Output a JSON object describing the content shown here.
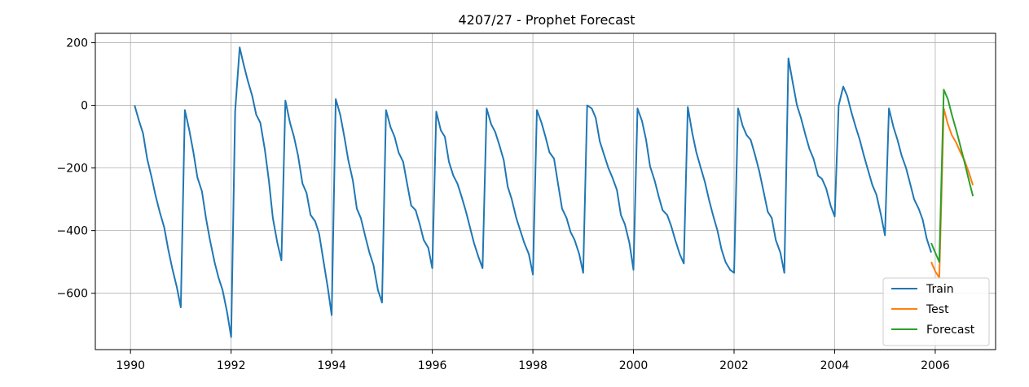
{
  "chart_data": {
    "type": "line",
    "title": "4207/27 - Prophet Forecast",
    "xlabel": "",
    "ylabel": "",
    "xlim": [
      1989.3,
      2007.2
    ],
    "ylim": [
      -780,
      230
    ],
    "x_ticks": [
      1990,
      1992,
      1994,
      1996,
      1998,
      2000,
      2002,
      2004,
      2006
    ],
    "x_tick_labels": [
      "1990",
      "1992",
      "1994",
      "1996",
      "1998",
      "2000",
      "2002",
      "2004",
      "2006"
    ],
    "y_ticks": [
      200,
      0,
      -200,
      -400,
      -600
    ],
    "y_tick_labels": [
      "200",
      "0",
      "−200",
      "−400",
      "−600"
    ],
    "grid": true,
    "legend_position": "bottom-right",
    "series": [
      {
        "name": "Train",
        "color": "#1f77b4",
        "points": [
          [
            1990.08,
            0
          ],
          [
            1990.17,
            -50
          ],
          [
            1990.25,
            -90
          ],
          [
            1990.33,
            -170
          ],
          [
            1990.42,
            -230
          ],
          [
            1990.5,
            -290
          ],
          [
            1990.58,
            -340
          ],
          [
            1990.67,
            -390
          ],
          [
            1990.75,
            -460
          ],
          [
            1990.83,
            -520
          ],
          [
            1990.92,
            -580
          ],
          [
            1991.0,
            -645
          ],
          [
            1991.08,
            -15
          ],
          [
            1991.17,
            -80
          ],
          [
            1991.25,
            -150
          ],
          [
            1991.33,
            -230
          ],
          [
            1991.42,
            -275
          ],
          [
            1991.5,
            -360
          ],
          [
            1991.58,
            -430
          ],
          [
            1991.67,
            -500
          ],
          [
            1991.75,
            -550
          ],
          [
            1991.83,
            -590
          ],
          [
            1991.92,
            -660
          ],
          [
            1992.0,
            -740
          ],
          [
            1992.08,
            -20
          ],
          [
            1992.17,
            185
          ],
          [
            1992.25,
            130
          ],
          [
            1992.33,
            80
          ],
          [
            1992.42,
            30
          ],
          [
            1992.5,
            -30
          ],
          [
            1992.58,
            -55
          ],
          [
            1992.67,
            -140
          ],
          [
            1992.75,
            -240
          ],
          [
            1992.83,
            -360
          ],
          [
            1992.92,
            -440
          ],
          [
            1993.0,
            -495
          ],
          [
            1993.08,
            15
          ],
          [
            1993.17,
            -55
          ],
          [
            1993.25,
            -100
          ],
          [
            1993.33,
            -160
          ],
          [
            1993.42,
            -250
          ],
          [
            1993.5,
            -280
          ],
          [
            1993.58,
            -350
          ],
          [
            1993.67,
            -370
          ],
          [
            1993.75,
            -410
          ],
          [
            1993.83,
            -490
          ],
          [
            1993.92,
            -580
          ],
          [
            1994.0,
            -670
          ],
          [
            1994.08,
            20
          ],
          [
            1994.17,
            -30
          ],
          [
            1994.25,
            -100
          ],
          [
            1994.33,
            -175
          ],
          [
            1994.42,
            -240
          ],
          [
            1994.5,
            -330
          ],
          [
            1994.58,
            -360
          ],
          [
            1994.67,
            -420
          ],
          [
            1994.75,
            -470
          ],
          [
            1994.83,
            -510
          ],
          [
            1994.92,
            -590
          ],
          [
            1995.0,
            -630
          ],
          [
            1995.08,
            -15
          ],
          [
            1995.17,
            -70
          ],
          [
            1995.25,
            -100
          ],
          [
            1995.33,
            -150
          ],
          [
            1995.42,
            -180
          ],
          [
            1995.5,
            -250
          ],
          [
            1995.58,
            -320
          ],
          [
            1995.67,
            -335
          ],
          [
            1995.75,
            -380
          ],
          [
            1995.83,
            -430
          ],
          [
            1995.92,
            -455
          ],
          [
            1996.0,
            -520
          ],
          [
            1996.08,
            -20
          ],
          [
            1996.17,
            -80
          ],
          [
            1996.25,
            -100
          ],
          [
            1996.33,
            -180
          ],
          [
            1996.42,
            -225
          ],
          [
            1996.5,
            -250
          ],
          [
            1996.58,
            -290
          ],
          [
            1996.67,
            -340
          ],
          [
            1996.75,
            -390
          ],
          [
            1996.83,
            -440
          ],
          [
            1996.92,
            -485
          ],
          [
            1997.0,
            -520
          ],
          [
            1997.08,
            -10
          ],
          [
            1997.17,
            -60
          ],
          [
            1997.25,
            -85
          ],
          [
            1997.33,
            -125
          ],
          [
            1997.42,
            -175
          ],
          [
            1997.5,
            -260
          ],
          [
            1997.58,
            -300
          ],
          [
            1997.67,
            -360
          ],
          [
            1997.75,
            -400
          ],
          [
            1997.83,
            -440
          ],
          [
            1997.92,
            -475
          ],
          [
            1998.0,
            -540
          ],
          [
            1998.08,
            -15
          ],
          [
            1998.17,
            -55
          ],
          [
            1998.25,
            -100
          ],
          [
            1998.33,
            -150
          ],
          [
            1998.42,
            -170
          ],
          [
            1998.5,
            -250
          ],
          [
            1998.58,
            -330
          ],
          [
            1998.67,
            -360
          ],
          [
            1998.75,
            -405
          ],
          [
            1998.83,
            -430
          ],
          [
            1998.92,
            -475
          ],
          [
            1999.0,
            -535
          ],
          [
            1999.08,
            0
          ],
          [
            1999.17,
            -10
          ],
          [
            1999.25,
            -40
          ],
          [
            1999.33,
            -115
          ],
          [
            1999.42,
            -160
          ],
          [
            1999.5,
            -200
          ],
          [
            1999.58,
            -230
          ],
          [
            1999.67,
            -270
          ],
          [
            1999.75,
            -350
          ],
          [
            1999.83,
            -380
          ],
          [
            1999.92,
            -440
          ],
          [
            2000.0,
            -525
          ],
          [
            2000.08,
            -10
          ],
          [
            2000.17,
            -50
          ],
          [
            2000.25,
            -110
          ],
          [
            2000.33,
            -195
          ],
          [
            2000.42,
            -240
          ],
          [
            2000.5,
            -290
          ],
          [
            2000.58,
            -335
          ],
          [
            2000.67,
            -350
          ],
          [
            2000.75,
            -385
          ],
          [
            2000.83,
            -430
          ],
          [
            2000.92,
            -475
          ],
          [
            2001.0,
            -505
          ],
          [
            2001.08,
            -5
          ],
          [
            2001.17,
            -90
          ],
          [
            2001.25,
            -150
          ],
          [
            2001.33,
            -195
          ],
          [
            2001.42,
            -245
          ],
          [
            2001.5,
            -300
          ],
          [
            2001.58,
            -350
          ],
          [
            2001.67,
            -400
          ],
          [
            2001.75,
            -460
          ],
          [
            2001.83,
            -500
          ],
          [
            2001.92,
            -525
          ],
          [
            2002.0,
            -535
          ],
          [
            2002.08,
            -10
          ],
          [
            2002.17,
            -65
          ],
          [
            2002.25,
            -95
          ],
          [
            2002.33,
            -110
          ],
          [
            2002.42,
            -160
          ],
          [
            2002.5,
            -210
          ],
          [
            2002.58,
            -270
          ],
          [
            2002.67,
            -340
          ],
          [
            2002.75,
            -360
          ],
          [
            2002.83,
            -430
          ],
          [
            2002.92,
            -470
          ],
          [
            2003.0,
            -535
          ],
          [
            2003.08,
            150
          ],
          [
            2003.17,
            70
          ],
          [
            2003.25,
            0
          ],
          [
            2003.33,
            -40
          ],
          [
            2003.42,
            -95
          ],
          [
            2003.5,
            -140
          ],
          [
            2003.58,
            -170
          ],
          [
            2003.67,
            -225
          ],
          [
            2003.75,
            -235
          ],
          [
            2003.83,
            -265
          ],
          [
            2003.92,
            -320
          ],
          [
            2004.0,
            -355
          ],
          [
            2004.08,
            0
          ],
          [
            2004.17,
            60
          ],
          [
            2004.25,
            30
          ],
          [
            2004.33,
            -20
          ],
          [
            2004.42,
            -70
          ],
          [
            2004.5,
            -110
          ],
          [
            2004.58,
            -160
          ],
          [
            2004.67,
            -210
          ],
          [
            2004.75,
            -255
          ],
          [
            2004.83,
            -285
          ],
          [
            2004.92,
            -350
          ],
          [
            2005.0,
            -415
          ],
          [
            2005.08,
            -10
          ],
          [
            2005.17,
            -70
          ],
          [
            2005.25,
            -110
          ],
          [
            2005.33,
            -160
          ],
          [
            2005.42,
            -200
          ],
          [
            2005.5,
            -250
          ],
          [
            2005.58,
            -300
          ],
          [
            2005.67,
            -330
          ],
          [
            2005.75,
            -365
          ],
          [
            2005.83,
            -425
          ],
          [
            2005.92,
            -470
          ]
        ]
      },
      {
        "name": "Test",
        "color": "#ff7f0e",
        "points": [
          [
            2005.92,
            -500
          ],
          [
            2006.0,
            -530
          ],
          [
            2006.08,
            -550
          ],
          [
            2006.17,
            -10
          ],
          [
            2006.25,
            -60
          ],
          [
            2006.33,
            -95
          ],
          [
            2006.42,
            -120
          ],
          [
            2006.5,
            -150
          ],
          [
            2006.58,
            -175
          ],
          [
            2006.67,
            -215
          ],
          [
            2006.75,
            -255
          ]
        ]
      },
      {
        "name": "Forecast",
        "color": "#2ca02c",
        "points": [
          [
            2005.92,
            -440
          ],
          [
            2006.0,
            -470
          ],
          [
            2006.08,
            -500
          ],
          [
            2006.17,
            50
          ],
          [
            2006.25,
            20
          ],
          [
            2006.33,
            -30
          ],
          [
            2006.42,
            -80
          ],
          [
            2006.5,
            -130
          ],
          [
            2006.58,
            -180
          ],
          [
            2006.67,
            -240
          ],
          [
            2006.75,
            -290
          ]
        ]
      }
    ]
  }
}
